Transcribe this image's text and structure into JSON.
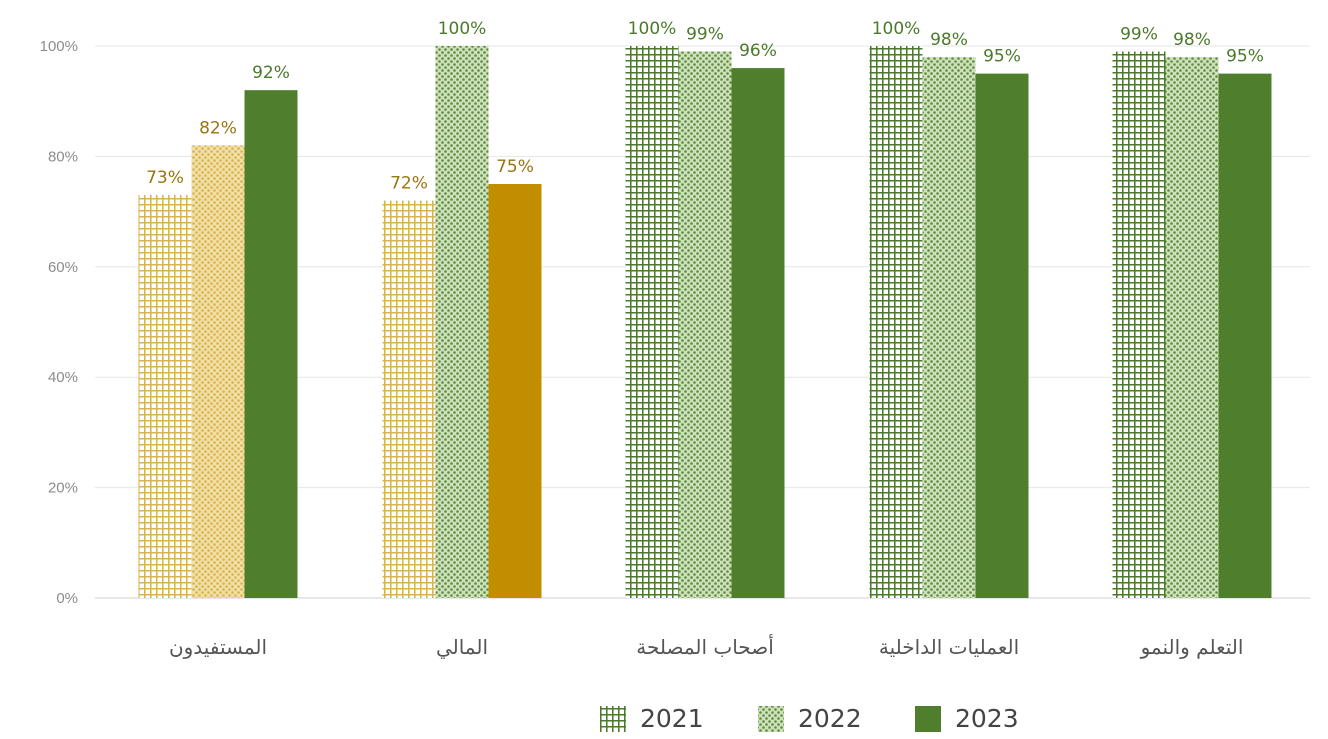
{
  "chart_data": {
    "type": "bar",
    "title": "",
    "xlabel": "",
    "ylabel": "",
    "ylim": [
      0,
      100
    ],
    "yticks": [
      "0%",
      "20%",
      "40%",
      "60%",
      "80%",
      "100%"
    ],
    "yticks_values": [
      0,
      20,
      40,
      60,
      80,
      100
    ],
    "grid": true,
    "legend_position": "bottom-center",
    "categories": [
      "المستفيدون",
      "المالي",
      "أصحاب المصلحة",
      "العمليات الداخلية",
      "التعلم والنمو"
    ],
    "series": [
      {
        "name": "2021",
        "pattern": "grid",
        "values": [
          73,
          72,
          100,
          100,
          99
        ],
        "labels": [
          "73%",
          "72%",
          "100%",
          "100%",
          "99%"
        ],
        "colors": [
          "#d9b44a",
          "#d9b44a",
          "#4a7a2a",
          "#4a7a2a",
          "#4a7a2a"
        ]
      },
      {
        "name": "2022",
        "pattern": "dots",
        "values": [
          82,
          100,
          99,
          98,
          98
        ],
        "labels": [
          "82%",
          "100%",
          "99%",
          "98%",
          "98%"
        ],
        "colors": [
          "#d9b44a",
          "#5f8f3a",
          "#5f8f3a",
          "#5f8f3a",
          "#5f8f3a"
        ]
      },
      {
        "name": "2023",
        "pattern": "solid",
        "values": [
          92,
          75,
          96,
          95,
          95
        ],
        "labels": [
          "92%",
          "75%",
          "96%",
          "95%",
          "95%"
        ],
        "colors": [
          "#4f7f2d",
          "#c28e00",
          "#4f7f2d",
          "#4f7f2d",
          "#4f7f2d"
        ]
      }
    ],
    "label_colors": {
      "gold": "#9a7410",
      "green": "#4a7a2a"
    }
  }
}
